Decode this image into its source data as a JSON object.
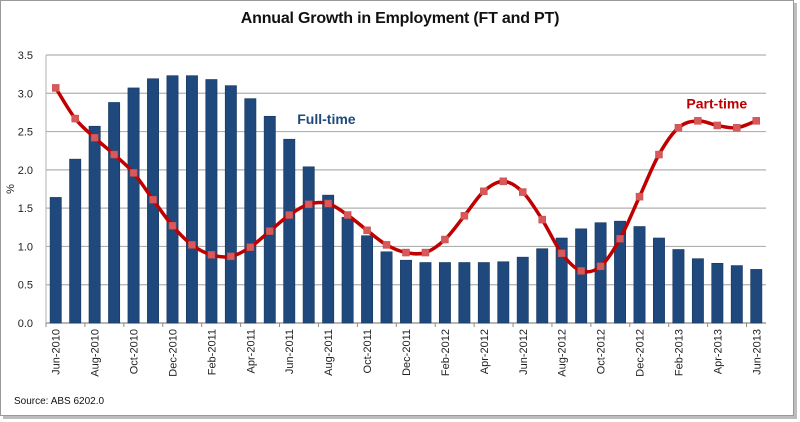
{
  "chart_data": {
    "type": "bar",
    "title": "Annual Growth in Employment (FT and PT)",
    "xlabel": "",
    "ylabel": "%",
    "ylim": [
      0,
      3.5
    ],
    "yticks": [
      "0.0",
      "0.5",
      "1.0",
      "1.5",
      "2.0",
      "2.5",
      "3.0",
      "3.5"
    ],
    "grid": true,
    "categories": [
      "Jun-2010",
      "Jul-2010",
      "Aug-2010",
      "Sep-2010",
      "Oct-2010",
      "Nov-2010",
      "Dec-2010",
      "Jan-2011",
      "Feb-2011",
      "Mar-2011",
      "Apr-2011",
      "May-2011",
      "Jun-2011",
      "Jul-2011",
      "Aug-2011",
      "Sep-2011",
      "Oct-2011",
      "Nov-2011",
      "Dec-2011",
      "Jan-2012",
      "Feb-2012",
      "Mar-2012",
      "Apr-2012",
      "May-2012",
      "Jun-2012",
      "Jul-2012",
      "Aug-2012",
      "Sep-2012",
      "Oct-2012",
      "Nov-2012",
      "Dec-2012",
      "Jan-2013",
      "Feb-2013",
      "Mar-2013",
      "Apr-2013",
      "May-2013",
      "Jun-2013"
    ],
    "xtick_labels": [
      "Jun-2010",
      "Aug-2010",
      "Oct-2010",
      "Dec-2010",
      "Feb-2011",
      "Apr-2011",
      "Jun-2011",
      "Aug-2011",
      "Oct-2011",
      "Dec-2011",
      "Feb-2012",
      "Apr-2012",
      "Jun-2012",
      "Aug-2012",
      "Oct-2012",
      "Dec-2012",
      "Feb-2013",
      "Apr-2013",
      "Jun-2013"
    ],
    "series": [
      {
        "name": "Full-time",
        "type": "bar",
        "color": "#1f497d",
        "values": [
          1.64,
          2.14,
          2.57,
          2.88,
          3.07,
          3.19,
          3.23,
          3.23,
          3.18,
          3.1,
          2.93,
          2.7,
          2.4,
          2.04,
          1.67,
          1.38,
          1.14,
          0.93,
          0.82,
          0.79,
          0.79,
          0.79,
          0.79,
          0.8,
          0.86,
          0.97,
          1.11,
          1.23,
          1.31,
          1.33,
          1.26,
          1.11,
          0.96,
          0.84,
          0.78,
          0.75,
          0.7
        ]
      },
      {
        "name": "Part-time",
        "type": "line",
        "color": "#c00000",
        "marker_color": "#d9585a",
        "values": [
          3.07,
          2.67,
          2.42,
          2.2,
          1.96,
          1.61,
          1.27,
          1.02,
          0.89,
          0.87,
          0.99,
          1.2,
          1.41,
          1.55,
          1.56,
          1.41,
          1.21,
          1.02,
          0.92,
          0.92,
          1.09,
          1.4,
          1.72,
          1.85,
          1.71,
          1.35,
          0.91,
          0.68,
          0.74,
          1.1,
          1.65,
          2.2,
          2.55,
          2.64,
          2.58,
          2.55,
          2.64
        ]
      }
    ],
    "annotations": [
      {
        "text": "Full-time",
        "series": "Full-time",
        "color": "#1f497d",
        "anchor_category": "Jun-2011",
        "anchor_value": 2.6
      },
      {
        "text": "Part-time",
        "series": "Part-time",
        "color": "#c00000",
        "anchor_category": "Feb-2013",
        "anchor_value": 2.8
      }
    ],
    "source": "Source: ABS 6202.0"
  }
}
